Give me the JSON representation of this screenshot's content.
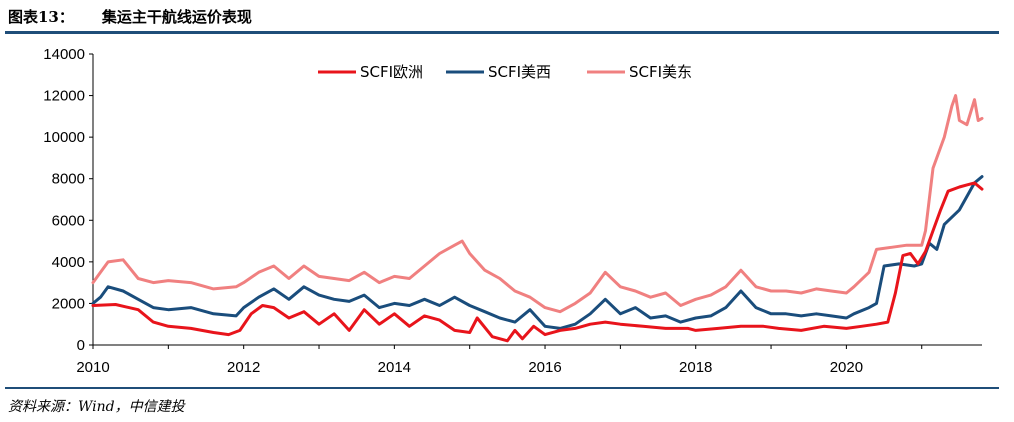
{
  "header": {
    "figure_label": "图表13：",
    "figure_title": "集运主干航线运价表现"
  },
  "footer": {
    "source": "资料来源：Wind，中信建投"
  },
  "chart_data": {
    "type": "line",
    "title": "集运主干航线运价表现",
    "xlabel": "",
    "ylabel": "",
    "xlim": [
      2010,
      2021.8
    ],
    "ylim": [
      0,
      14000
    ],
    "x_ticks": [
      "2010",
      "2012",
      "2014",
      "2016",
      "2018",
      "2020"
    ],
    "y_ticks": [
      "0",
      "2000",
      "4000",
      "6000",
      "8000",
      "10000",
      "12000",
      "14000"
    ],
    "legend_position": "top-center",
    "grid": false,
    "series": [
      {
        "name": "SCFI欧洲",
        "color": "#e8141b",
        "points": [
          [
            2010,
            1900
          ],
          [
            2010.3,
            1950
          ],
          [
            2010.6,
            1700
          ],
          [
            2010.8,
            1100
          ],
          [
            2011.0,
            900
          ],
          [
            2011.3,
            800
          ],
          [
            2011.6,
            600
          ],
          [
            2011.8,
            500
          ],
          [
            2011.95,
            700
          ],
          [
            2012.1,
            1500
          ],
          [
            2012.25,
            1900
          ],
          [
            2012.4,
            1800
          ],
          [
            2012.6,
            1300
          ],
          [
            2012.8,
            1600
          ],
          [
            2013.0,
            1000
          ],
          [
            2013.2,
            1500
          ],
          [
            2013.4,
            700
          ],
          [
            2013.6,
            1700
          ],
          [
            2013.8,
            1000
          ],
          [
            2014.0,
            1500
          ],
          [
            2014.2,
            900
          ],
          [
            2014.4,
            1400
          ],
          [
            2014.6,
            1200
          ],
          [
            2014.8,
            700
          ],
          [
            2015.0,
            600
          ],
          [
            2015.1,
            1300
          ],
          [
            2015.3,
            400
          ],
          [
            2015.5,
            200
          ],
          [
            2015.6,
            700
          ],
          [
            2015.7,
            300
          ],
          [
            2015.85,
            900
          ],
          [
            2016.0,
            500
          ],
          [
            2016.2,
            700
          ],
          [
            2016.4,
            800
          ],
          [
            2016.6,
            1000
          ],
          [
            2016.8,
            1100
          ],
          [
            2017.0,
            1000
          ],
          [
            2017.3,
            900
          ],
          [
            2017.6,
            800
          ],
          [
            2017.9,
            800
          ],
          [
            2018.0,
            700
          ],
          [
            2018.3,
            800
          ],
          [
            2018.6,
            900
          ],
          [
            2018.9,
            900
          ],
          [
            2019.1,
            800
          ],
          [
            2019.4,
            700
          ],
          [
            2019.7,
            900
          ],
          [
            2020.0,
            800
          ],
          [
            2020.2,
            900
          ],
          [
            2020.4,
            1000
          ],
          [
            2020.55,
            1100
          ],
          [
            2020.65,
            2500
          ],
          [
            2020.75,
            4300
          ],
          [
            2020.85,
            4400
          ],
          [
            2020.95,
            3900
          ],
          [
            2021.05,
            4500
          ],
          [
            2021.15,
            5500
          ],
          [
            2021.25,
            6500
          ],
          [
            2021.35,
            7400
          ],
          [
            2021.5,
            7600
          ],
          [
            2021.6,
            7700
          ],
          [
            2021.7,
            7800
          ],
          [
            2021.8,
            7500
          ]
        ]
      },
      {
        "name": "SCFI美西",
        "color": "#1a4d7c",
        "points": [
          [
            2010,
            2000
          ],
          [
            2010.1,
            2300
          ],
          [
            2010.2,
            2800
          ],
          [
            2010.4,
            2600
          ],
          [
            2010.6,
            2200
          ],
          [
            2010.8,
            1800
          ],
          [
            2011.0,
            1700
          ],
          [
            2011.3,
            1800
          ],
          [
            2011.6,
            1500
          ],
          [
            2011.9,
            1400
          ],
          [
            2012.0,
            1800
          ],
          [
            2012.2,
            2300
          ],
          [
            2012.4,
            2700
          ],
          [
            2012.6,
            2200
          ],
          [
            2012.8,
            2800
          ],
          [
            2013.0,
            2400
          ],
          [
            2013.2,
            2200
          ],
          [
            2013.4,
            2100
          ],
          [
            2013.6,
            2400
          ],
          [
            2013.8,
            1800
          ],
          [
            2014.0,
            2000
          ],
          [
            2014.2,
            1900
          ],
          [
            2014.4,
            2200
          ],
          [
            2014.6,
            1900
          ],
          [
            2014.8,
            2300
          ],
          [
            2015.0,
            1900
          ],
          [
            2015.2,
            1600
          ],
          [
            2015.4,
            1300
          ],
          [
            2015.6,
            1100
          ],
          [
            2015.8,
            1700
          ],
          [
            2016.0,
            900
          ],
          [
            2016.2,
            800
          ],
          [
            2016.4,
            1000
          ],
          [
            2016.6,
            1500
          ],
          [
            2016.8,
            2200
          ],
          [
            2017.0,
            1500
          ],
          [
            2017.2,
            1800
          ],
          [
            2017.4,
            1300
          ],
          [
            2017.6,
            1400
          ],
          [
            2017.8,
            1100
          ],
          [
            2018.0,
            1300
          ],
          [
            2018.2,
            1400
          ],
          [
            2018.4,
            1800
          ],
          [
            2018.6,
            2600
          ],
          [
            2018.8,
            1800
          ],
          [
            2019.0,
            1500
          ],
          [
            2019.2,
            1500
          ],
          [
            2019.4,
            1400
          ],
          [
            2019.6,
            1500
          ],
          [
            2019.8,
            1400
          ],
          [
            2020.0,
            1300
          ],
          [
            2020.1,
            1500
          ],
          [
            2020.3,
            1800
          ],
          [
            2020.4,
            2000
          ],
          [
            2020.5,
            3800
          ],
          [
            2020.7,
            3900
          ],
          [
            2020.9,
            3800
          ],
          [
            2021.0,
            3900
          ],
          [
            2021.1,
            4900
          ],
          [
            2021.2,
            4600
          ],
          [
            2021.3,
            5800
          ],
          [
            2021.5,
            6500
          ],
          [
            2021.7,
            7800
          ],
          [
            2021.8,
            8100
          ]
        ]
      },
      {
        "name": "SCFI美东",
        "color": "#f08080",
        "points": [
          [
            2010,
            3000
          ],
          [
            2010.1,
            3500
          ],
          [
            2010.2,
            4000
          ],
          [
            2010.4,
            4100
          ],
          [
            2010.6,
            3200
          ],
          [
            2010.8,
            3000
          ],
          [
            2011.0,
            3100
          ],
          [
            2011.3,
            3000
          ],
          [
            2011.6,
            2700
          ],
          [
            2011.9,
            2800
          ],
          [
            2012.0,
            3000
          ],
          [
            2012.2,
            3500
          ],
          [
            2012.4,
            3800
          ],
          [
            2012.6,
            3200
          ],
          [
            2012.8,
            3800
          ],
          [
            2013.0,
            3300
          ],
          [
            2013.2,
            3200
          ],
          [
            2013.4,
            3100
          ],
          [
            2013.6,
            3500
          ],
          [
            2013.8,
            3000
          ],
          [
            2014.0,
            3300
          ],
          [
            2014.2,
            3200
          ],
          [
            2014.4,
            3800
          ],
          [
            2014.6,
            4400
          ],
          [
            2014.8,
            4800
          ],
          [
            2014.9,
            5000
          ],
          [
            2015.0,
            4400
          ],
          [
            2015.2,
            3600
          ],
          [
            2015.4,
            3200
          ],
          [
            2015.6,
            2600
          ],
          [
            2015.8,
            2300
          ],
          [
            2016.0,
            1800
          ],
          [
            2016.2,
            1600
          ],
          [
            2016.4,
            2000
          ],
          [
            2016.6,
            2500
          ],
          [
            2016.8,
            3500
          ],
          [
            2017.0,
            2800
          ],
          [
            2017.2,
            2600
          ],
          [
            2017.4,
            2300
          ],
          [
            2017.6,
            2500
          ],
          [
            2017.8,
            1900
          ],
          [
            2018.0,
            2200
          ],
          [
            2018.2,
            2400
          ],
          [
            2018.4,
            2800
          ],
          [
            2018.6,
            3600
          ],
          [
            2018.8,
            2800
          ],
          [
            2019.0,
            2600
          ],
          [
            2019.2,
            2600
          ],
          [
            2019.4,
            2500
          ],
          [
            2019.6,
            2700
          ],
          [
            2019.8,
            2600
          ],
          [
            2020.0,
            2500
          ],
          [
            2020.1,
            2800
          ],
          [
            2020.3,
            3500
          ],
          [
            2020.4,
            4600
          ],
          [
            2020.6,
            4700
          ],
          [
            2020.8,
            4800
          ],
          [
            2021.0,
            4800
          ],
          [
            2021.05,
            5500
          ],
          [
            2021.15,
            8500
          ],
          [
            2021.3,
            10000
          ],
          [
            2021.4,
            11500
          ],
          [
            2021.45,
            12000
          ],
          [
            2021.5,
            10800
          ],
          [
            2021.6,
            10600
          ],
          [
            2021.7,
            11800
          ],
          [
            2021.75,
            10800
          ],
          [
            2021.8,
            10900
          ]
        ]
      }
    ]
  }
}
